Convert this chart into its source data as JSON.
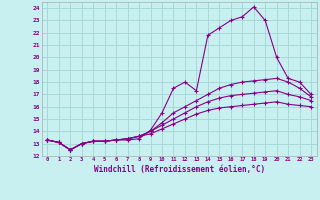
{
  "xlabel": "Windchill (Refroidissement éolien,°C)",
  "bg_color": "#c8f0f0",
  "grid_color": "#a8d8d8",
  "line_color": "#880088",
  "xlim": [
    -0.5,
    23.5
  ],
  "ylim": [
    12,
    24.5
  ],
  "yticks": [
    12,
    13,
    14,
    15,
    16,
    17,
    18,
    19,
    20,
    21,
    22,
    23,
    24
  ],
  "xticks": [
    0,
    1,
    2,
    3,
    4,
    5,
    6,
    7,
    8,
    9,
    10,
    11,
    12,
    13,
    14,
    15,
    16,
    17,
    18,
    19,
    20,
    21,
    22,
    23
  ],
  "lines": [
    {
      "x": [
        0,
        1,
        2,
        3,
        4,
        5,
        6,
        7,
        8,
        9,
        10,
        11,
        12,
        13,
        14,
        15,
        16,
        17,
        18,
        19,
        20,
        21,
        22,
        23
      ],
      "y": [
        13.3,
        13.1,
        12.5,
        13.0,
        13.2,
        13.2,
        13.3,
        13.3,
        13.4,
        14.1,
        15.5,
        17.5,
        18.0,
        17.3,
        21.8,
        22.4,
        23.0,
        23.3,
        24.1,
        23.0,
        20.0,
        18.3,
        18.0,
        17.0
      ]
    },
    {
      "x": [
        0,
        1,
        2,
        3,
        4,
        5,
        6,
        7,
        8,
        9,
        10,
        11,
        12,
        13,
        14,
        15,
        16,
        17,
        18,
        19,
        20,
        21,
        22,
        23
      ],
      "y": [
        13.3,
        13.1,
        12.5,
        13.0,
        13.2,
        13.2,
        13.3,
        13.4,
        13.6,
        14.0,
        14.7,
        15.5,
        16.0,
        16.5,
        17.0,
        17.5,
        17.8,
        18.0,
        18.1,
        18.2,
        18.3,
        18.0,
        17.5,
        16.8
      ]
    },
    {
      "x": [
        0,
        1,
        2,
        3,
        4,
        5,
        6,
        7,
        8,
        9,
        10,
        11,
        12,
        13,
        14,
        15,
        16,
        17,
        18,
        19,
        20,
        21,
        22,
        23
      ],
      "y": [
        13.3,
        13.1,
        12.5,
        13.0,
        13.2,
        13.2,
        13.3,
        13.4,
        13.6,
        14.0,
        14.5,
        15.0,
        15.5,
        16.0,
        16.4,
        16.7,
        16.9,
        17.0,
        17.1,
        17.2,
        17.3,
        17.0,
        16.8,
        16.5
      ]
    },
    {
      "x": [
        0,
        1,
        2,
        3,
        4,
        5,
        6,
        7,
        8,
        9,
        10,
        11,
        12,
        13,
        14,
        15,
        16,
        17,
        18,
        19,
        20,
        21,
        22,
        23
      ],
      "y": [
        13.3,
        13.1,
        12.5,
        13.0,
        13.2,
        13.2,
        13.3,
        13.4,
        13.6,
        13.8,
        14.2,
        14.6,
        15.0,
        15.4,
        15.7,
        15.9,
        16.0,
        16.1,
        16.2,
        16.3,
        16.4,
        16.2,
        16.1,
        16.0
      ]
    }
  ]
}
